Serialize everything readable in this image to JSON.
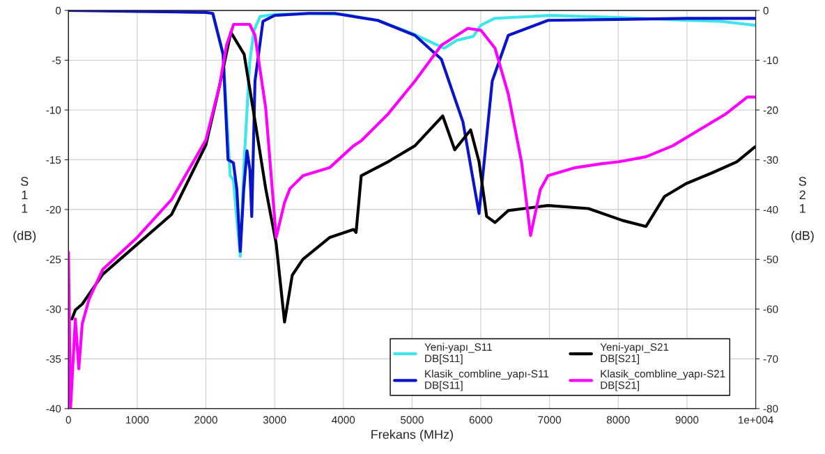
{
  "chart_data": {
    "type": "line",
    "xlabel": "Frekans (MHz)",
    "ylabel": "S\n1\n1\n\n(dB)",
    "y2label": "S\n2\n1\n\n(dB)",
    "xlim": [
      0,
      10000
    ],
    "xticks": [
      0,
      1000,
      2000,
      3000,
      4000,
      5000,
      6000,
      7000,
      8000,
      9000,
      {
        "value": 10000,
        "label": "1e+004"
      }
    ],
    "ylim": [
      -40,
      0
    ],
    "yticks": [
      -40,
      -35,
      -30,
      -25,
      -20,
      -15,
      -10,
      -5,
      0
    ],
    "y2lim": [
      -80,
      0
    ],
    "y2ticks": [
      -80,
      -70,
      -60,
      -50,
      -40,
      -30,
      -20,
      -10,
      0
    ],
    "grid": true,
    "legend": "bottom right",
    "line_style": "solid",
    "series": [
      {
        "name": "Yeni-yapı_S11\nDB[S11]",
        "color": "#3ee6ea",
        "x": [
          2100,
          2250,
          2353,
          2400,
          2450,
          2500,
          2556,
          2637,
          2700,
          2789,
          3000,
          3500,
          4000,
          4500,
          5000,
          5467,
          5650,
          5892,
          6000,
          6200,
          7000,
          8000,
          9000,
          9500,
          10000
        ],
        "values": [
          -0.3,
          -4.4,
          -16.6,
          -17,
          -21,
          -24.7,
          -15.2,
          -5.2,
          -2,
          -0.6,
          -0.4,
          -0.3,
          -0.4,
          -1,
          -2.3,
          -3.8,
          -3,
          -2.6,
          -1.5,
          -0.8,
          -0.5,
          -0.7,
          -1.0,
          -1.1,
          -1.5
        ]
      },
      {
        "name": "Klasik_combline_yapı-S11\nDB[S11]",
        "color": "#0a14c8",
        "x": [
          0,
          1000,
          2000,
          2100,
          2250,
          2322,
          2400,
          2450,
          2500,
          2550,
          2598,
          2640,
          2667,
          2714,
          2830,
          3000,
          3500,
          3874,
          4500,
          5041,
          5426,
          5740,
          5974,
          6166,
          6400,
          6978,
          8000,
          9000,
          10000
        ],
        "values": [
          0,
          -0.1,
          -0.2,
          -0.3,
          -4.4,
          -15,
          -15.3,
          -18,
          -24.2,
          -18,
          -14.1,
          -16,
          -20.7,
          -7.1,
          -1.1,
          -0.5,
          -0.3,
          -0.3,
          -1,
          -2.5,
          -4.9,
          -11.2,
          -20.4,
          -7.1,
          -2.5,
          -1.0,
          -0.9,
          -0.8,
          -0.8
        ]
      },
      {
        "name": "Yeni-yapı_S21\nDB[S21]",
        "color": "#000000",
        "axis": "y2",
        "x": [
          50,
          100,
          200,
          300,
          500,
          1000,
          1500,
          2000,
          2200,
          2363,
          2556,
          2714,
          2870,
          3022,
          3144,
          3256,
          3411,
          3803,
          4148,
          4185,
          4260,
          4651,
          5041,
          5446,
          5620,
          5852,
          5974,
          6085,
          6207,
          6400,
          6978,
          7566,
          8063,
          8404,
          8672,
          8986,
          9371,
          9726,
          9990
        ],
        "values": [
          -62,
          -60.2,
          -59,
          -57,
          -53,
          -47,
          -41,
          -27,
          -15,
          -4.4,
          -8.8,
          -22.2,
          -35.8,
          -46.8,
          -62.6,
          -53.2,
          -50,
          -45.6,
          -44,
          -44.6,
          -33.2,
          -30.4,
          -27.2,
          -21.2,
          -28,
          -24,
          -30.4,
          -41.4,
          -42.6,
          -40.2,
          -39.2,
          -39.8,
          -42.2,
          -43.4,
          -37.4,
          -34.8,
          -32.6,
          -30.4,
          -27.4
        ]
      },
      {
        "name": "Klasik_combline_yapı-S21\nDB[S21]",
        "color": "#ff00ff",
        "axis": "y2",
        "x": [
          0,
          30,
          100,
          150,
          200,
          300,
          500,
          1000,
          1500,
          2000,
          2200,
          2300,
          2404,
          2637,
          2714,
          2870,
          3022,
          3144,
          3222,
          3414,
          3800,
          4148,
          4260,
          4651,
          5041,
          5426,
          5811,
          6002,
          6207,
          6400,
          6592,
          6724,
          6866,
          6978,
          7373,
          7758,
          8012,
          8404,
          8793,
          9178,
          9564,
          9878,
          9990
        ],
        "values": [
          -48.6,
          -80,
          -62,
          -72,
          -63,
          -58,
          -52,
          -45.6,
          -38,
          -26,
          -15,
          -7,
          -2.8,
          -2.8,
          -5,
          -19.6,
          -45.6,
          -38.6,
          -35.8,
          -33.2,
          -31.6,
          -27.2,
          -26.2,
          -20.8,
          -14.2,
          -7,
          -3.6,
          -4,
          -7.6,
          -16.8,
          -30.4,
          -45.2,
          -36,
          -33.2,
          -31.6,
          -30.8,
          -30.4,
          -29.4,
          -27.2,
          -24,
          -20.8,
          -17.4,
          -17.4
        ]
      }
    ]
  }
}
